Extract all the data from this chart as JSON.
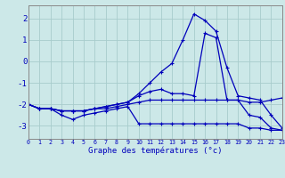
{
  "x": [
    0,
    1,
    2,
    3,
    4,
    5,
    6,
    7,
    8,
    9,
    10,
    11,
    12,
    13,
    14,
    15,
    16,
    17,
    18,
    19,
    20,
    21,
    22,
    23
  ],
  "line_peak": [
    -2.0,
    -2.2,
    -2.2,
    -2.3,
    -2.3,
    -2.3,
    -2.2,
    -2.1,
    -2.0,
    -1.9,
    -1.5,
    -1.0,
    -0.5,
    -0.1,
    1.0,
    2.2,
    1.9,
    1.4,
    -0.3,
    -1.6,
    -1.7,
    -1.8,
    -2.5,
    -3.1
  ],
  "line_mid": [
    -2.0,
    -2.2,
    -2.2,
    -2.3,
    -2.3,
    -2.3,
    -2.2,
    -2.1,
    -2.0,
    -1.9,
    -1.6,
    -1.4,
    -1.3,
    -1.5,
    -1.5,
    -1.6,
    1.3,
    1.1,
    -1.8,
    -1.8,
    -1.9,
    -1.9,
    -1.8,
    -1.7
  ],
  "line_flat1": [
    -2.0,
    -2.2,
    -2.2,
    -2.3,
    -2.3,
    -2.3,
    -2.2,
    -2.2,
    -2.1,
    -2.0,
    -1.9,
    -1.8,
    -1.8,
    -1.8,
    -1.8,
    -1.8,
    -1.8,
    -1.8,
    -1.8,
    -1.8,
    -2.5,
    -2.6,
    -3.1,
    -3.2
  ],
  "line_flat2": [
    -2.0,
    -2.2,
    -2.2,
    -2.5,
    -2.7,
    -2.5,
    -2.4,
    -2.3,
    -2.2,
    -2.1,
    -2.9,
    -2.9,
    -2.9,
    -2.9,
    -2.9,
    -2.9,
    -2.9,
    -2.9,
    -2.9,
    -2.9,
    -3.1,
    -3.1,
    -3.2,
    -3.2
  ],
  "bg_color": "#cce8e8",
  "line_color": "#0000bb",
  "grid_color": "#a8cccc",
  "ylabel_vals": [
    2,
    1,
    0,
    -1,
    -2,
    -3
  ],
  "xlabel": "Graphe des températures (°c)",
  "ylim": [
    -3.6,
    2.6
  ],
  "xlim": [
    0,
    23
  ]
}
